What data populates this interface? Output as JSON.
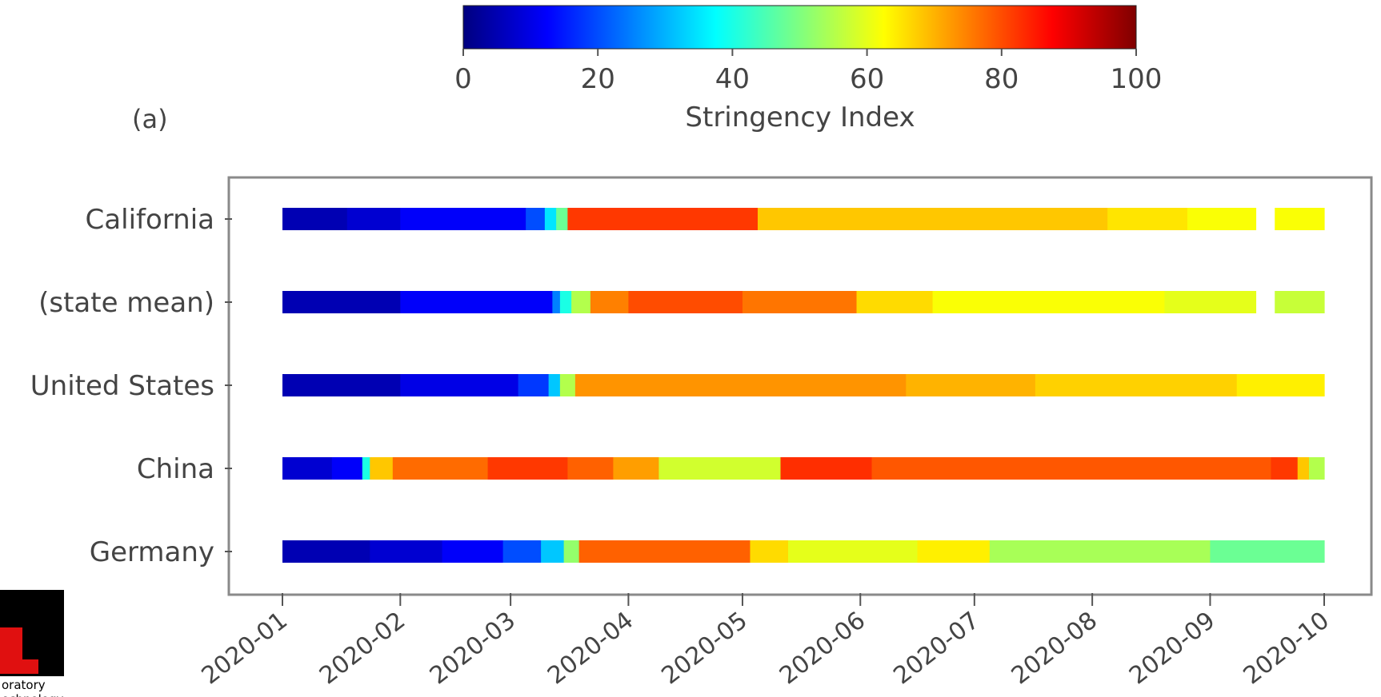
{
  "panel_label": "(a)",
  "logo": {
    "line1": "oratory",
    "line2": "echnology"
  },
  "chart_data": {
    "type": "heatmap",
    "colorbar": {
      "label": "Stringency Index",
      "range": [
        0,
        100
      ],
      "ticks": [
        "0",
        "20",
        "40",
        "60",
        "80",
        "100"
      ],
      "colormap": "jet"
    },
    "x_axis": {
      "ticks": [
        "2020-01",
        "2020-02",
        "2020-03",
        "2020-04",
        "2020-05",
        "2020-06",
        "2020-07",
        "2020-08",
        "2020-09",
        "2020-10"
      ],
      "range": [
        "2020-01-01",
        "2020-10-01"
      ]
    },
    "rows": [
      {
        "label": "California",
        "segments": [
          {
            "start": "2020-01-01",
            "end": "2020-01-18",
            "value": 5
          },
          {
            "start": "2020-01-18",
            "end": "2020-02-01",
            "value": 8
          },
          {
            "start": "2020-02-01",
            "end": "2020-03-05",
            "value": 12
          },
          {
            "start": "2020-03-05",
            "end": "2020-03-10",
            "value": 20
          },
          {
            "start": "2020-03-10",
            "end": "2020-03-13",
            "value": 35
          },
          {
            "start": "2020-03-13",
            "end": "2020-03-16",
            "value": 48
          },
          {
            "start": "2020-03-16",
            "end": "2020-05-05",
            "value": 82
          },
          {
            "start": "2020-05-05",
            "end": "2020-08-05",
            "value": 68
          },
          {
            "start": "2020-08-05",
            "end": "2020-08-26",
            "value": 65
          },
          {
            "start": "2020-08-26",
            "end": "2020-09-13",
            "value": 62
          },
          {
            "start": "2020-09-18",
            "end": "2020-10-01",
            "value": 62
          }
        ]
      },
      {
        "label": "(state mean)",
        "segments": [
          {
            "start": "2020-01-01",
            "end": "2020-02-01",
            "value": 5
          },
          {
            "start": "2020-02-01",
            "end": "2020-03-12",
            "value": 12
          },
          {
            "start": "2020-03-12",
            "end": "2020-03-14",
            "value": 25
          },
          {
            "start": "2020-03-14",
            "end": "2020-03-17",
            "value": 40
          },
          {
            "start": "2020-03-17",
            "end": "2020-03-22",
            "value": 55
          },
          {
            "start": "2020-03-22",
            "end": "2020-04-01",
            "value": 75
          },
          {
            "start": "2020-04-01",
            "end": "2020-05-01",
            "value": 80
          },
          {
            "start": "2020-05-01",
            "end": "2020-05-31",
            "value": 76
          },
          {
            "start": "2020-05-31",
            "end": "2020-06-20",
            "value": 66
          },
          {
            "start": "2020-06-20",
            "end": "2020-08-20",
            "value": 62
          },
          {
            "start": "2020-08-20",
            "end": "2020-09-13",
            "value": 60
          },
          {
            "start": "2020-09-18",
            "end": "2020-10-01",
            "value": 57
          }
        ]
      },
      {
        "label": "United States",
        "segments": [
          {
            "start": "2020-01-01",
            "end": "2020-02-01",
            "value": 5
          },
          {
            "start": "2020-02-01",
            "end": "2020-03-03",
            "value": 10
          },
          {
            "start": "2020-03-03",
            "end": "2020-03-11",
            "value": 18
          },
          {
            "start": "2020-03-11",
            "end": "2020-03-14",
            "value": 32
          },
          {
            "start": "2020-03-14",
            "end": "2020-03-18",
            "value": 55
          },
          {
            "start": "2020-03-18",
            "end": "2020-06-13",
            "value": 73
          },
          {
            "start": "2020-06-13",
            "end": "2020-07-17",
            "value": 70
          },
          {
            "start": "2020-07-17",
            "end": "2020-09-08",
            "value": 67
          },
          {
            "start": "2020-09-08",
            "end": "2020-10-01",
            "value": 64
          }
        ]
      },
      {
        "label": "China",
        "segments": [
          {
            "start": "2020-01-01",
            "end": "2020-01-14",
            "value": 8
          },
          {
            "start": "2020-01-14",
            "end": "2020-01-22",
            "value": 12
          },
          {
            "start": "2020-01-22",
            "end": "2020-01-24",
            "value": 40
          },
          {
            "start": "2020-01-24",
            "end": "2020-01-30",
            "value": 68
          },
          {
            "start": "2020-01-30",
            "end": "2020-02-24",
            "value": 77
          },
          {
            "start": "2020-02-24",
            "end": "2020-03-16",
            "value": 82
          },
          {
            "start": "2020-03-16",
            "end": "2020-03-28",
            "value": 78
          },
          {
            "start": "2020-03-28",
            "end": "2020-04-09",
            "value": 72
          },
          {
            "start": "2020-04-09",
            "end": "2020-05-11",
            "value": 58
          },
          {
            "start": "2020-05-11",
            "end": "2020-06-04",
            "value": 83
          },
          {
            "start": "2020-06-04",
            "end": "2020-09-17",
            "value": 79
          },
          {
            "start": "2020-09-17",
            "end": "2020-09-24",
            "value": 82
          },
          {
            "start": "2020-09-24",
            "end": "2020-09-27",
            "value": 68
          },
          {
            "start": "2020-09-27",
            "end": "2020-10-01",
            "value": 55
          }
        ]
      },
      {
        "label": "Germany",
        "segments": [
          {
            "start": "2020-01-01",
            "end": "2020-01-24",
            "value": 5
          },
          {
            "start": "2020-01-24",
            "end": "2020-02-12",
            "value": 8
          },
          {
            "start": "2020-02-12",
            "end": "2020-02-28",
            "value": 12
          },
          {
            "start": "2020-02-28",
            "end": "2020-03-09",
            "value": 20
          },
          {
            "start": "2020-03-09",
            "end": "2020-03-15",
            "value": 32
          },
          {
            "start": "2020-03-15",
            "end": "2020-03-19",
            "value": 52
          },
          {
            "start": "2020-03-19",
            "end": "2020-05-03",
            "value": 78
          },
          {
            "start": "2020-05-03",
            "end": "2020-05-13",
            "value": 66
          },
          {
            "start": "2020-05-13",
            "end": "2020-06-16",
            "value": 60
          },
          {
            "start": "2020-06-16",
            "end": "2020-07-05",
            "value": 64
          },
          {
            "start": "2020-07-05",
            "end": "2020-09-01",
            "value": 54
          },
          {
            "start": "2020-09-01",
            "end": "2020-10-01",
            "value": 48
          }
        ]
      }
    ]
  }
}
